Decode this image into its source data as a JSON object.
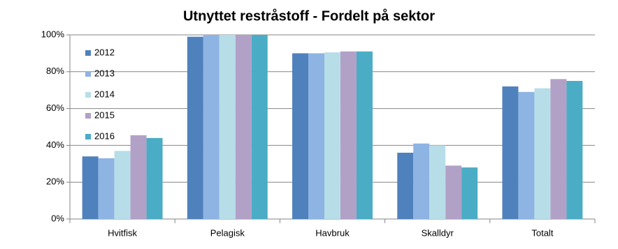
{
  "chart_data": {
    "type": "bar",
    "title": "Utnyttet restråstoff - Fordelt på sektor",
    "categories": [
      "Hvitfisk",
      "Pelagisk",
      "Havbruk",
      "Skalldyr",
      "Totalt"
    ],
    "series": [
      {
        "name": "2012",
        "color": "#4f81bd",
        "values": [
          34,
          99,
          90,
          36,
          72
        ]
      },
      {
        "name": "2013",
        "color": "#8eb4e3",
        "values": [
          33,
          100,
          90,
          41,
          69
        ]
      },
      {
        "name": "2014",
        "color": "#b7dee8",
        "values": [
          37,
          100,
          90.5,
          40,
          71
        ]
      },
      {
        "name": "2015",
        "color": "#b2a1c7",
        "values": [
          45.5,
          100,
          91,
          29,
          76
        ]
      },
      {
        "name": "2016",
        "color": "#4bacc6",
        "values": [
          44,
          100,
          91,
          28,
          75
        ]
      }
    ],
    "ylim": [
      0,
      100
    ],
    "yticks": [
      {
        "value": 0,
        "label": "0%"
      },
      {
        "value": 20,
        "label": "20%"
      },
      {
        "value": 40,
        "label": "40%"
      },
      {
        "value": 60,
        "label": "60%"
      },
      {
        "value": 80,
        "label": "80%"
      },
      {
        "value": 100,
        "label": "100%"
      }
    ],
    "grid": true,
    "legend": "upper-left"
  }
}
